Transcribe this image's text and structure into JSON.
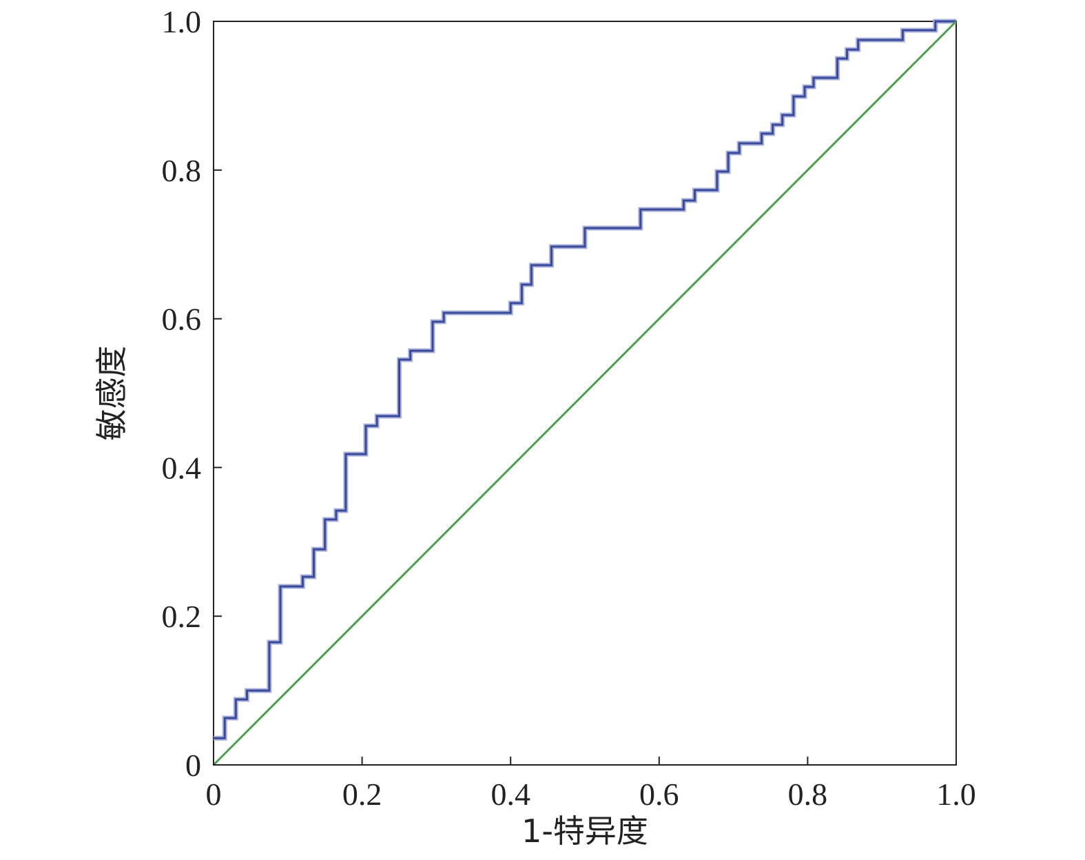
{
  "chart_data": {
    "type": "line",
    "title": "",
    "xlabel": "1-特异度",
    "ylabel": "敏感度",
    "xlim": [
      0,
      1
    ],
    "ylim": [
      0,
      1
    ],
    "grid": false,
    "x_ticks": [
      "0",
      "0.2",
      "0.4",
      "0.6",
      "0.8",
      "1.0"
    ],
    "y_ticks": [
      "0",
      "0.2",
      "0.4",
      "0.6",
      "0.8",
      "1.0"
    ],
    "tick_values": [
      0,
      0.2,
      0.4,
      0.6,
      0.8,
      1.0
    ],
    "series": [
      {
        "color": "#3a4a9a",
        "step": true,
        "points": [
          [
            0.0,
            0.036
          ],
          [
            0.015,
            0.036
          ],
          [
            0.015,
            0.063
          ],
          [
            0.03,
            0.063
          ],
          [
            0.03,
            0.088
          ],
          [
            0.045,
            0.088
          ],
          [
            0.045,
            0.1
          ],
          [
            0.075,
            0.1
          ],
          [
            0.075,
            0.165
          ],
          [
            0.09,
            0.165
          ],
          [
            0.09,
            0.24
          ],
          [
            0.12,
            0.24
          ],
          [
            0.12,
            0.253
          ],
          [
            0.135,
            0.253
          ],
          [
            0.135,
            0.29
          ],
          [
            0.15,
            0.29
          ],
          [
            0.15,
            0.33
          ],
          [
            0.165,
            0.33
          ],
          [
            0.165,
            0.342
          ],
          [
            0.178,
            0.342
          ],
          [
            0.178,
            0.418
          ],
          [
            0.205,
            0.418
          ],
          [
            0.205,
            0.456
          ],
          [
            0.22,
            0.456
          ],
          [
            0.22,
            0.469
          ],
          [
            0.25,
            0.469
          ],
          [
            0.25,
            0.545
          ],
          [
            0.265,
            0.545
          ],
          [
            0.265,
            0.557
          ],
          [
            0.295,
            0.557
          ],
          [
            0.295,
            0.596
          ],
          [
            0.31,
            0.596
          ],
          [
            0.31,
            0.608
          ],
          [
            0.4,
            0.608
          ],
          [
            0.4,
            0.621
          ],
          [
            0.415,
            0.621
          ],
          [
            0.415,
            0.646
          ],
          [
            0.428,
            0.646
          ],
          [
            0.428,
            0.672
          ],
          [
            0.455,
            0.672
          ],
          [
            0.455,
            0.697
          ],
          [
            0.5,
            0.697
          ],
          [
            0.5,
            0.722
          ],
          [
            0.575,
            0.722
          ],
          [
            0.575,
            0.747
          ],
          [
            0.633,
            0.747
          ],
          [
            0.633,
            0.759
          ],
          [
            0.648,
            0.759
          ],
          [
            0.648,
            0.773
          ],
          [
            0.678,
            0.773
          ],
          [
            0.678,
            0.798
          ],
          [
            0.693,
            0.798
          ],
          [
            0.693,
            0.823
          ],
          [
            0.708,
            0.823
          ],
          [
            0.708,
            0.836
          ],
          [
            0.738,
            0.836
          ],
          [
            0.738,
            0.849
          ],
          [
            0.753,
            0.849
          ],
          [
            0.753,
            0.861
          ],
          [
            0.766,
            0.861
          ],
          [
            0.766,
            0.874
          ],
          [
            0.781,
            0.874
          ],
          [
            0.781,
            0.899
          ],
          [
            0.796,
            0.899
          ],
          [
            0.796,
            0.912
          ],
          [
            0.808,
            0.912
          ],
          [
            0.808,
            0.924
          ],
          [
            0.84,
            0.924
          ],
          [
            0.84,
            0.95
          ],
          [
            0.853,
            0.95
          ],
          [
            0.853,
            0.962
          ],
          [
            0.868,
            0.962
          ],
          [
            0.868,
            0.975
          ],
          [
            0.928,
            0.975
          ],
          [
            0.928,
            0.988
          ],
          [
            0.972,
            0.988
          ],
          [
            0.972,
            1.0
          ],
          [
            1.0,
            1.0
          ]
        ]
      },
      {
        "color": "#4aa04a",
        "step": false,
        "points": [
          [
            0,
            0
          ],
          [
            1,
            1
          ]
        ]
      }
    ]
  }
}
